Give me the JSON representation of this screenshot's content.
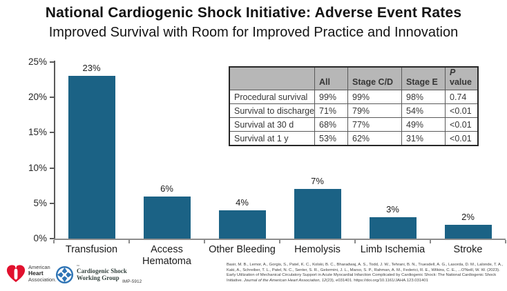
{
  "title": "National Cardiogenic Shock Initiative: Adverse Event Rates",
  "subtitle": "Improved Survival with Room for Improved Practice and Innovation",
  "chart_data": {
    "type": "bar",
    "categories": [
      "Transfusion",
      "Access Hematoma",
      "Other Bleeding",
      "Hemolysis",
      "Limb Ischemia",
      "Stroke"
    ],
    "values": [
      23,
      6,
      4,
      7,
      3,
      2
    ],
    "value_labels": [
      "23%",
      "6%",
      "4%",
      "7%",
      "3%",
      "2%"
    ],
    "title": "",
    "xlabel": "",
    "ylabel": "",
    "ylim": [
      0,
      25
    ],
    "ytick_step": 5,
    "ytick_labels": [
      "0%",
      "5%",
      "10%",
      "15%",
      "20%",
      "25%"
    ],
    "grid": false,
    "legend": false,
    "bar_color": "#1b6285"
  },
  "table": {
    "col_headers": [
      "",
      "All",
      "Stage C/D",
      "Stage E"
    ],
    "p_header": {
      "italic": "P",
      "rest": "value"
    },
    "rows": [
      {
        "label": "Procedural survival",
        "all": "99%",
        "stage_cd": "99%",
        "stage_e": "98%",
        "p": "0.74"
      },
      {
        "label": "Survival to discharge",
        "all": "71%",
        "stage_cd": "79%",
        "stage_e": "54%",
        "p": "<0.01"
      },
      {
        "label": "Survival at 30 d",
        "all": "68%",
        "stage_cd": "77%",
        "stage_e": "49%",
        "p": "<0.01"
      },
      {
        "label": "Survival at 1 y",
        "all": "53%",
        "stage_cd": "62%",
        "stage_e": "31%",
        "p": "<0.01"
      }
    ],
    "header_bg": "#b7b7b7"
  },
  "footer": {
    "aha": {
      "line1": "American",
      "line2": "Heart",
      "line3": "Association."
    },
    "cswg": {
      "line1": "Cardiogenic Shock",
      "line2": "Working Group",
      "tm": "™"
    },
    "imp_code": "IMP-5912",
    "citation_part1": "Basir, M. B., Lemor, A., Gorgis, S., Patel, K. C., Kolski, B. C., Bharadwaj, A. S., Todd, J. W., Tehrani, B. N., Truesdell, A. G., Lasorda, D. M., Lalonde, T. A., Kaki, A., Schreiber, T. L., Patel, N. C., Senter, S. R., Gelormini, J. L., Marso, S. P., Rahman, A. M., Federici, R. E., Wilkins, C. E., ...O'Neill, W. W. (2023). Early Utilization of Mechanical Circulatory Support in Acute Myocardial Infarction Complicated by Cardiogenic Shock: The National Cardiogenic Shock Initiative. ",
    "citation_journal": "Journal of the American Heart Association, 12",
    "citation_part2": "(23), e031401. https://doi.org/10.1161/JAHA.123.031401"
  },
  "colors": {
    "bar": "#1b6285",
    "axis": "#595959",
    "table_header_bg": "#b7b7b7",
    "aha_red": "#e1112e",
    "cswg_blue": "#2e74b5"
  }
}
